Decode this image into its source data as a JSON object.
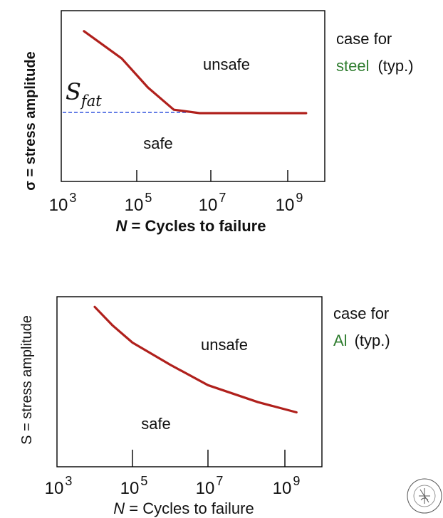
{
  "colors": {
    "curve": "#b0201c",
    "frame": "#000000",
    "fatigue_line": "#3355dd",
    "material_name": "#2f7d2f",
    "text": "#111111"
  },
  "tick_labels": {
    "base": "10",
    "exponents": [
      "3",
      "5",
      "7",
      "9"
    ]
  },
  "chart_data": [
    {
      "type": "line",
      "xscale": "log",
      "xlim": [
        1000,
        1000000000
      ],
      "ylabel": "σ = stress amplitude",
      "xlabel_var": "N",
      "xlabel_rest": " = Cycles to failure",
      "region_labels": {
        "upper": "unsafe",
        "lower": "safe"
      },
      "fatigue_limit_label": "S",
      "fatigue_limit_subscript": "fat",
      "side_note_line1": "case for",
      "side_note_material": "steel",
      "side_note_suffix": "(typ.)",
      "grid": false,
      "series": [
        {
          "x": [
            4000,
            40000,
            200000,
            1000000,
            5000000,
            100000000,
            3000000000
          ],
          "y": [
            0.88,
            0.72,
            0.55,
            0.42,
            0.4,
            0.4,
            0.4
          ]
        }
      ]
    },
    {
      "type": "line",
      "xscale": "log",
      "xlim": [
        1000,
        1000000000
      ],
      "ylabel": "S = stress amplitude",
      "xlabel_var": "N",
      "xlabel_rest": " = Cycles to failure",
      "region_labels": {
        "upper": "unsafe",
        "lower": "safe"
      },
      "side_note_line1": "case for",
      "side_note_material": "Al",
      "side_note_suffix": "(typ.)",
      "grid": false,
      "series": [
        {
          "x": [
            10000,
            30000,
            100000,
            1000000,
            10000000,
            200000000,
            2000000000
          ],
          "y": [
            0.94,
            0.83,
            0.73,
            0.6,
            0.48,
            0.38,
            0.32
          ]
        }
      ]
    }
  ],
  "logo": {
    "name": "university-seal-logo",
    "text": "SOLIDUM PETIT IN"
  }
}
